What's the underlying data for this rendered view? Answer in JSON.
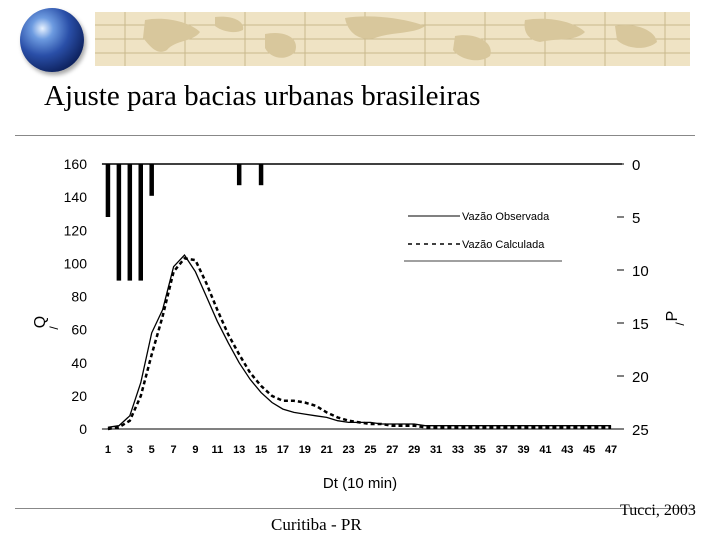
{
  "slide": {
    "title": "Ajuste para bacias urbanas brasileiras",
    "footer_left": "Curitiba - PR",
    "footer_right": "Tucci, 2003"
  },
  "chart_data": {
    "type": "line",
    "xlabel": "Dt (10 min)",
    "ylabel": "Q",
    "y2label": "P",
    "x_ticks": [
      1,
      3,
      5,
      7,
      9,
      11,
      13,
      15,
      17,
      19,
      21,
      23,
      25,
      27,
      29,
      31,
      33,
      35,
      37,
      39,
      41,
      43,
      45,
      47
    ],
    "xlim": [
      0,
      48
    ],
    "ylim": [
      0,
      160
    ],
    "y_ticks": [
      0,
      20,
      40,
      60,
      80,
      100,
      120,
      140,
      160
    ],
    "y2lim": [
      0,
      25
    ],
    "y2_reversed": true,
    "y2_ticks": [
      0,
      5,
      10,
      15,
      20,
      25
    ],
    "legend_position": "top-right",
    "series": [
      {
        "name": "Vazão Observada",
        "style": "solid",
        "x": [
          1,
          2,
          3,
          4,
          5,
          6,
          7,
          8,
          9,
          10,
          11,
          12,
          13,
          14,
          15,
          16,
          17,
          18,
          19,
          20,
          21,
          22,
          23,
          24,
          25,
          26,
          27,
          28,
          29,
          30,
          31,
          32,
          33,
          34,
          35,
          36,
          37,
          38,
          39,
          40,
          41,
          42,
          43,
          44,
          45,
          46,
          47
        ],
        "values": [
          1,
          2,
          8,
          28,
          58,
          72,
          98,
          105,
          95,
          80,
          65,
          52,
          40,
          30,
          22,
          16,
          12,
          10,
          9,
          8,
          7,
          5,
          4,
          4,
          4,
          3,
          3,
          3,
          3,
          2,
          2,
          2,
          2,
          2,
          2,
          2,
          2,
          2,
          2,
          2,
          2,
          2,
          2,
          2,
          2,
          2,
          2
        ]
      },
      {
        "name": "Vazão Calculada",
        "style": "dashed",
        "x": [
          1,
          2,
          3,
          4,
          5,
          6,
          7,
          8,
          9,
          10,
          11,
          12,
          13,
          14,
          15,
          16,
          17,
          18,
          19,
          20,
          21,
          22,
          23,
          24,
          25,
          26,
          27,
          28,
          29,
          30,
          31,
          32,
          33,
          34,
          35,
          36,
          37,
          38,
          39,
          40,
          41,
          42,
          43,
          44,
          45,
          46,
          47
        ],
        "values": [
          0,
          1,
          5,
          20,
          45,
          68,
          95,
          103,
          102,
          88,
          72,
          57,
          45,
          34,
          26,
          20,
          17,
          17,
          16,
          14,
          10,
          7,
          5,
          4,
          3,
          3,
          2,
          2,
          2,
          1,
          1,
          1,
          1,
          1,
          1,
          1,
          1,
          1,
          1,
          1,
          1,
          1,
          1,
          1,
          1,
          1,
          1
        ]
      }
    ],
    "rainfall": {
      "x": [
        1,
        2,
        3,
        4,
        5,
        13,
        15
      ],
      "values": [
        5,
        11,
        11,
        11,
        3,
        2,
        2
      ]
    }
  }
}
